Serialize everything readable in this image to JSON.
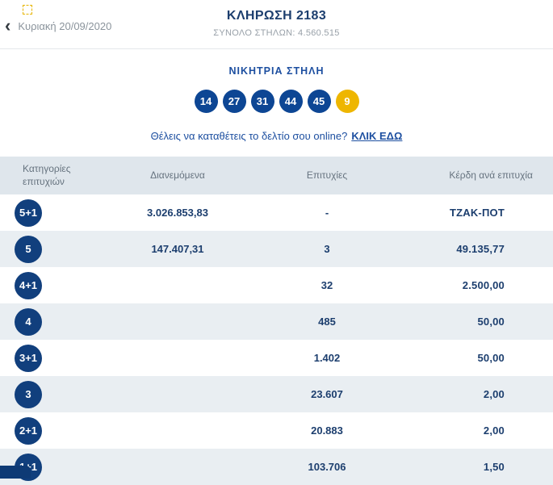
{
  "header": {
    "title": "ΚΛΗΡΩΣΗ 2183",
    "subtitle": "ΣΥΝΟΛΟ ΣΤΗΛΩΝ: 4.560.515",
    "date": "Κυριακή 20/09/2020",
    "back_glyph": "‹"
  },
  "winning": {
    "title": "ΝΙΚΗΤΡΙΑ ΣΤΗΛΗ",
    "numbers": [
      "14",
      "27",
      "31",
      "44",
      "45"
    ],
    "joker": "9"
  },
  "cta": {
    "text": "Θέλεις να καταθέτεις το δελτίο σου online?",
    "link": "ΚΛΙΚ ΕΔΩ"
  },
  "table": {
    "headers": {
      "category": "Κατηγορίες επιτυχιών",
      "distributed": "Διανεμόμενα",
      "hits": "Επιτυχίες",
      "prize": "Κέρδη ανά επιτυχία"
    },
    "rows": [
      {
        "category": "5+1",
        "distributed": "3.026.853,83",
        "hits": "-",
        "prize": "ΤΖΑΚ-ΠΟΤ"
      },
      {
        "category": "5",
        "distributed": "147.407,31",
        "hits": "3",
        "prize": "49.135,77"
      },
      {
        "category": "4+1",
        "distributed": "",
        "hits": "32",
        "prize": "2.500,00"
      },
      {
        "category": "4",
        "distributed": "",
        "hits": "485",
        "prize": "50,00"
      },
      {
        "category": "3+1",
        "distributed": "",
        "hits": "1.402",
        "prize": "50,00"
      },
      {
        "category": "3",
        "distributed": "",
        "hits": "23.607",
        "prize": "2,00"
      },
      {
        "category": "2+1",
        "distributed": "",
        "hits": "20.883",
        "prize": "2,00"
      },
      {
        "category": "1+1",
        "distributed": "",
        "hits": "103.706",
        "prize": "1,50"
      }
    ]
  },
  "colors": {
    "navy": "#113f7d",
    "blue": "#1d4fa0",
    "joker_yellow": "#eeb600",
    "row_stripe": "#e9eef2",
    "header_band": "#dfe6ec"
  }
}
